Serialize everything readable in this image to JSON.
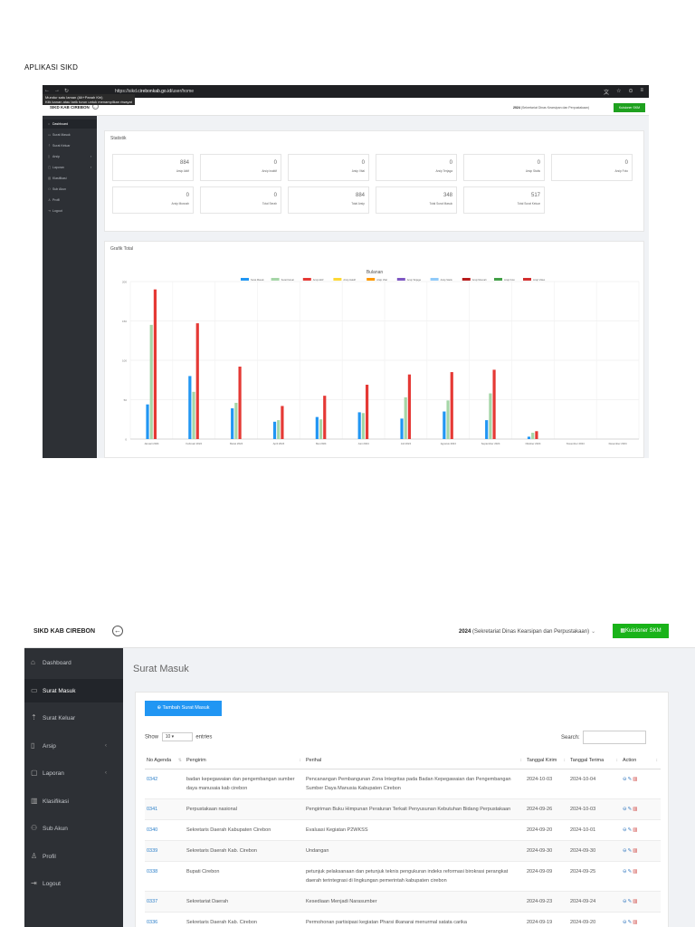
{
  "doc_title": "APLIKASI SIKD",
  "shot1": {
    "browser": {
      "url_prefix": "https://sikd.",
      "url_host": "cirebonkab.go.id",
      "url_path": "/user/home",
      "tooltip_lines": [
        "Mundur satu laman (Alt+Panah Kiri)",
        "Klik kanan atau tarik turun untuk menampilkan riwayat"
      ]
    },
    "brand": "SIKD KAB CIREBON",
    "year": "2024",
    "org": "(Sekretariat Dinas Kearsipan dan Perpustakaan)",
    "kuisioner": "Kuisioner SKM",
    "sidebar": [
      {
        "label": "Dashboard",
        "icon": "home-icon",
        "glyph": "⌂",
        "active": true,
        "chevron": false
      },
      {
        "label": "Surat Masuk",
        "icon": "inbox-icon",
        "glyph": "▭",
        "active": false,
        "chevron": false
      },
      {
        "label": "Surat Keluar",
        "icon": "upload-icon",
        "glyph": "⇡",
        "active": false,
        "chevron": false
      },
      {
        "label": "Arsip",
        "icon": "file-icon",
        "glyph": "▯",
        "active": false,
        "chevron": true
      },
      {
        "label": "Laporan",
        "icon": "report-icon",
        "glyph": "▢",
        "active": false,
        "chevron": true
      },
      {
        "label": "Klasifikasi",
        "icon": "book-icon",
        "glyph": "▥",
        "active": false,
        "chevron": false
      },
      {
        "label": "Sub Akun",
        "icon": "users-icon",
        "glyph": "⚇",
        "active": false,
        "chevron": false
      },
      {
        "label": "Profil",
        "icon": "user-icon",
        "glyph": "♙",
        "active": false,
        "chevron": false
      },
      {
        "label": "Logout",
        "icon": "logout-icon",
        "glyph": "⇥",
        "active": false,
        "chevron": false
      }
    ],
    "statistik_title": "Statistik",
    "stats_row1": [
      {
        "value": "884",
        "label": "Arsip Aktif"
      },
      {
        "value": "0",
        "label": "Arsip Inaktif"
      },
      {
        "value": "0",
        "label": "Arsip Vital"
      },
      {
        "value": "0",
        "label": "Arsip Terjaga"
      },
      {
        "value": "0",
        "label": "Arsip Statis"
      },
      {
        "value": "0",
        "label": "Arsip Foto"
      }
    ],
    "stats_row2": [
      {
        "value": "0",
        "label": "Arsip Musnah"
      },
      {
        "value": "0",
        "label": "Total Serah"
      },
      {
        "value": "884",
        "label": "Total Arsip"
      },
      {
        "value": "348",
        "label": "Total Surat Masuk"
      },
      {
        "value": "517",
        "label": "Total Surat Keluar"
      }
    ],
    "grafik_title": "Grafik Total"
  },
  "chart_data": {
    "type": "bar",
    "title": "Bulanan",
    "categories": [
      "Januari 2024",
      "Februari 2024",
      "Maret 2024",
      "April 2024",
      "Mei 2024",
      "Juni 2024",
      "Juli 2024",
      "Agustus 2024",
      "September 2024",
      "Oktober 2024",
      "November 2024",
      "Desember 2024"
    ],
    "series": [
      {
        "name": "Surat Masuk",
        "color": "#2196f3",
        "values": [
          44,
          80,
          39,
          22,
          28,
          34,
          26,
          35,
          24,
          3,
          0,
          0
        ]
      },
      {
        "name": "Surat Keluar",
        "color": "#a5d6a7",
        "values": [
          145,
          60,
          46,
          24,
          25,
          33,
          53,
          49,
          58,
          8,
          0,
          0
        ]
      },
      {
        "name": "Arsip Aktif",
        "color": "#e53935",
        "values": [
          190,
          147,
          92,
          42,
          55,
          69,
          82,
          85,
          88,
          10,
          0,
          0
        ]
      },
      {
        "name": "Arsip Inaktif",
        "color": "#fdd835",
        "values": [
          0,
          0,
          0,
          0,
          0,
          0,
          0,
          0,
          0,
          0,
          0,
          0
        ]
      },
      {
        "name": "Arsip Vital",
        "color": "#ff9800",
        "values": [
          0,
          0,
          0,
          0,
          0,
          0,
          0,
          0,
          0,
          0,
          0,
          0
        ]
      },
      {
        "name": "Arsip Terjaga",
        "color": "#7e57c2",
        "values": [
          0,
          0,
          0,
          0,
          0,
          0,
          0,
          0,
          0,
          0,
          0,
          0
        ]
      },
      {
        "name": "Arsip Statis",
        "color": "#90caf9",
        "values": [
          0,
          0,
          0,
          0,
          0,
          0,
          0,
          0,
          0,
          0,
          0,
          0
        ]
      },
      {
        "name": "Arsip Musnah",
        "color": "#b71c1c",
        "values": [
          0,
          0,
          0,
          0,
          0,
          0,
          0,
          0,
          0,
          0,
          0,
          0
        ]
      },
      {
        "name": "Arsip Foto",
        "color": "#43a047",
        "values": [
          0,
          0,
          0,
          0,
          0,
          0,
          0,
          0,
          0,
          0,
          0,
          0
        ]
      },
      {
        "name": "Arsip Video",
        "color": "#d32f2f",
        "values": [
          0,
          0,
          0,
          0,
          0,
          0,
          0,
          0,
          0,
          0,
          0,
          0
        ]
      }
    ],
    "ylim": [
      0,
      200
    ],
    "yticks": [
      0,
      50,
      100,
      150,
      200
    ],
    "grid": true,
    "legend": "top-center"
  },
  "shot2": {
    "brand": "SIKD KAB CIREBON",
    "year": "2024",
    "org": "(Sekretariat Dinas Kearsipan dan Perpustakaan)",
    "kuisioner": "Kuisioner SKM",
    "sidebar": [
      {
        "label": "Dashboard",
        "icon": "home-icon",
        "glyph": "⌂",
        "active": false,
        "chevron": false
      },
      {
        "label": "Surat Masuk",
        "icon": "inbox-icon",
        "glyph": "▭",
        "active": true,
        "chevron": false
      },
      {
        "label": "Surat Keluar",
        "icon": "upload-icon",
        "glyph": "⇡",
        "active": false,
        "chevron": false
      },
      {
        "label": "Arsip",
        "icon": "file-icon",
        "glyph": "▯",
        "active": false,
        "chevron": true
      },
      {
        "label": "Laporan",
        "icon": "report-icon",
        "glyph": "▢",
        "active": false,
        "chevron": true
      },
      {
        "label": "Klasifikasi",
        "icon": "book-icon",
        "glyph": "▥",
        "active": false,
        "chevron": false
      },
      {
        "label": "Sub Akun",
        "icon": "users-icon",
        "glyph": "⚇",
        "active": false,
        "chevron": false
      },
      {
        "label": "Profil",
        "icon": "user-icon",
        "glyph": "♙",
        "active": false,
        "chevron": false
      },
      {
        "label": "Logout",
        "icon": "logout-icon",
        "glyph": "⇥",
        "active": false,
        "chevron": false
      }
    ],
    "page_title": "Surat Masuk",
    "add_button": "Tambah Surat Masuk",
    "show_label": "Show",
    "show_value": "10",
    "entries_label": "entries",
    "search_label": "Search:",
    "table": {
      "headers": [
        "No Agenda",
        "Pengirim",
        "Perihal",
        "Tanggal Kirim",
        "Tanggal Terima",
        "Action"
      ],
      "rows": [
        {
          "no": "0342",
          "pengirim": "badan kepegawaian dan pengembangan sumber daya manusaia kab cirebon",
          "perihal": "Pencanangan Pembangunan Zona Integritas pada Badan Kepegawaian dan Pengembangan Sumber Daya Manusia Kabupaten Cirebon",
          "kirim": "2024-10-03",
          "terima": "2024-10-04"
        },
        {
          "no": "0341",
          "pengirim": "Perpustakaan nasional",
          "perihal": "Pengiriman Buku Himpunan Peraturan Terkait Penyusunan Kebutuhan Bidang Perpustakaan",
          "kirim": "2024-09-26",
          "terima": "2024-10-03"
        },
        {
          "no": "0340",
          "pengirim": "Sekretaris Daerah Kabupaten Cirebon",
          "perihal": "Evaluasi Kegiatan P2WKSS",
          "kirim": "2024-09-20",
          "terima": "2024-10-01"
        },
        {
          "no": "0339",
          "pengirim": "Sekretaris Daerah Kab. Cirebon",
          "perihal": "Undangan",
          "kirim": "2024-09-30",
          "terima": "2024-09-30"
        },
        {
          "no": "0338",
          "pengirim": "Bupati Cirebon",
          "perihal": "petunjuk pelaksanaan dan petunjuk teknis pengukuran indeks reformasi birokrasi perangkat daerah terintegrasi di lingkungan pemerintah kabupaten cirebon",
          "kirim": "2024-09-09",
          "terima": "2024-09-25"
        },
        {
          "no": "0337",
          "pengirim": "Sekretariat Daerah",
          "perihal": "Kesediaan Menjadi Narasumber",
          "kirim": "2024-09-23",
          "terima": "2024-09-24"
        },
        {
          "no": "0336",
          "pengirim": "Sekretaris Daerah Kab. Cirebon",
          "perihal": "Permohonan partisipasi kegiatan Pharsi ilkanarai menurmal satata carika",
          "kirim": "2024-09-19",
          "terima": "2024-09-20"
        }
      ]
    }
  }
}
